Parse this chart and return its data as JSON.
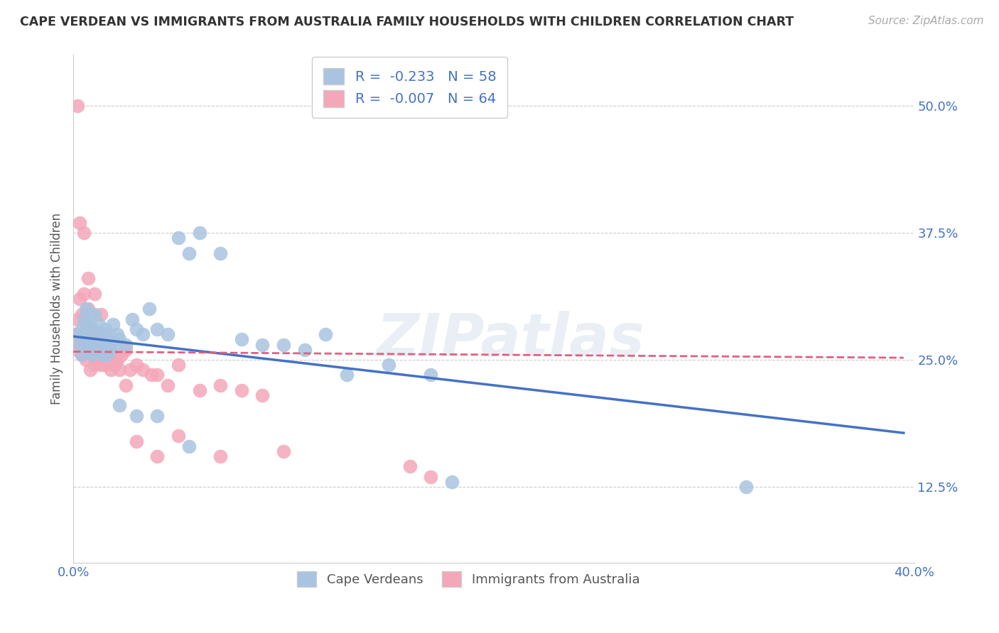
{
  "title": "CAPE VERDEAN VS IMMIGRANTS FROM AUSTRALIA FAMILY HOUSEHOLDS WITH CHILDREN CORRELATION CHART",
  "source": "Source: ZipAtlas.com",
  "ylabel": "Family Households with Children",
  "xlim": [
    0.0,
    0.4
  ],
  "ylim": [
    0.05,
    0.55
  ],
  "yticks": [
    0.125,
    0.25,
    0.375,
    0.5
  ],
  "ytick_labels": [
    "12.5%",
    "25.0%",
    "37.5%",
    "50.0%"
  ],
  "xticks": [
    0.0,
    0.05,
    0.1,
    0.15,
    0.2,
    0.25,
    0.3,
    0.35,
    0.4
  ],
  "xtick_labels": [
    "0.0%",
    "",
    "",
    "",
    "",
    "",
    "",
    "",
    "40.0%"
  ],
  "blue_color": "#a8c4e0",
  "pink_color": "#f4a7b9",
  "blue_line_color": "#4472c4",
  "pink_line_color": "#e06080",
  "legend_R_blue": "-0.233",
  "legend_N_blue": "58",
  "legend_R_pink": "-0.007",
  "legend_N_pink": "64",
  "watermark": "ZIPatlas",
  "blue_scatter_x": [
    0.002,
    0.003,
    0.004,
    0.004,
    0.005,
    0.005,
    0.006,
    0.007,
    0.007,
    0.008,
    0.008,
    0.009,
    0.009,
    0.01,
    0.01,
    0.011,
    0.012,
    0.012,
    0.013,
    0.014,
    0.015,
    0.015,
    0.016,
    0.017,
    0.018,
    0.019,
    0.02,
    0.021,
    0.022,
    0.025,
    0.028,
    0.03,
    0.033,
    0.036,
    0.04,
    0.045,
    0.05,
    0.055,
    0.06,
    0.07,
    0.08,
    0.09,
    0.1,
    0.11,
    0.12,
    0.13,
    0.15,
    0.17,
    0.007,
    0.01,
    0.013,
    0.016,
    0.022,
    0.03,
    0.04,
    0.055,
    0.18,
    0.32
  ],
  "blue_scatter_y": [
    0.275,
    0.265,
    0.28,
    0.255,
    0.29,
    0.27,
    0.3,
    0.285,
    0.26,
    0.295,
    0.27,
    0.28,
    0.255,
    0.295,
    0.27,
    0.26,
    0.285,
    0.265,
    0.275,
    0.255,
    0.28,
    0.265,
    0.27,
    0.275,
    0.26,
    0.285,
    0.265,
    0.275,
    0.27,
    0.265,
    0.29,
    0.28,
    0.275,
    0.3,
    0.28,
    0.275,
    0.37,
    0.355,
    0.375,
    0.355,
    0.27,
    0.265,
    0.265,
    0.26,
    0.275,
    0.235,
    0.245,
    0.235,
    0.265,
    0.27,
    0.26,
    0.255,
    0.205,
    0.195,
    0.195,
    0.165,
    0.13,
    0.125
  ],
  "pink_scatter_x": [
    0.001,
    0.002,
    0.002,
    0.003,
    0.003,
    0.004,
    0.004,
    0.005,
    0.005,
    0.006,
    0.006,
    0.007,
    0.007,
    0.008,
    0.008,
    0.009,
    0.009,
    0.01,
    0.01,
    0.011,
    0.011,
    0.012,
    0.012,
    0.013,
    0.013,
    0.014,
    0.015,
    0.015,
    0.016,
    0.017,
    0.018,
    0.019,
    0.02,
    0.021,
    0.022,
    0.023,
    0.025,
    0.027,
    0.03,
    0.033,
    0.037,
    0.04,
    0.045,
    0.05,
    0.06,
    0.07,
    0.08,
    0.09,
    0.003,
    0.005,
    0.007,
    0.01,
    0.013,
    0.016,
    0.02,
    0.025,
    0.03,
    0.04,
    0.05,
    0.07,
    0.1,
    0.16,
    0.17,
    0.002
  ],
  "pink_scatter_y": [
    0.275,
    0.29,
    0.26,
    0.31,
    0.27,
    0.295,
    0.255,
    0.315,
    0.27,
    0.285,
    0.25,
    0.3,
    0.26,
    0.275,
    0.24,
    0.265,
    0.28,
    0.265,
    0.245,
    0.27,
    0.25,
    0.26,
    0.275,
    0.245,
    0.265,
    0.255,
    0.265,
    0.245,
    0.255,
    0.26,
    0.24,
    0.255,
    0.245,
    0.25,
    0.24,
    0.255,
    0.26,
    0.24,
    0.245,
    0.24,
    0.235,
    0.235,
    0.225,
    0.245,
    0.22,
    0.225,
    0.22,
    0.215,
    0.385,
    0.375,
    0.33,
    0.315,
    0.295,
    0.255,
    0.25,
    0.225,
    0.17,
    0.155,
    0.175,
    0.155,
    0.16,
    0.145,
    0.135,
    0.5
  ]
}
